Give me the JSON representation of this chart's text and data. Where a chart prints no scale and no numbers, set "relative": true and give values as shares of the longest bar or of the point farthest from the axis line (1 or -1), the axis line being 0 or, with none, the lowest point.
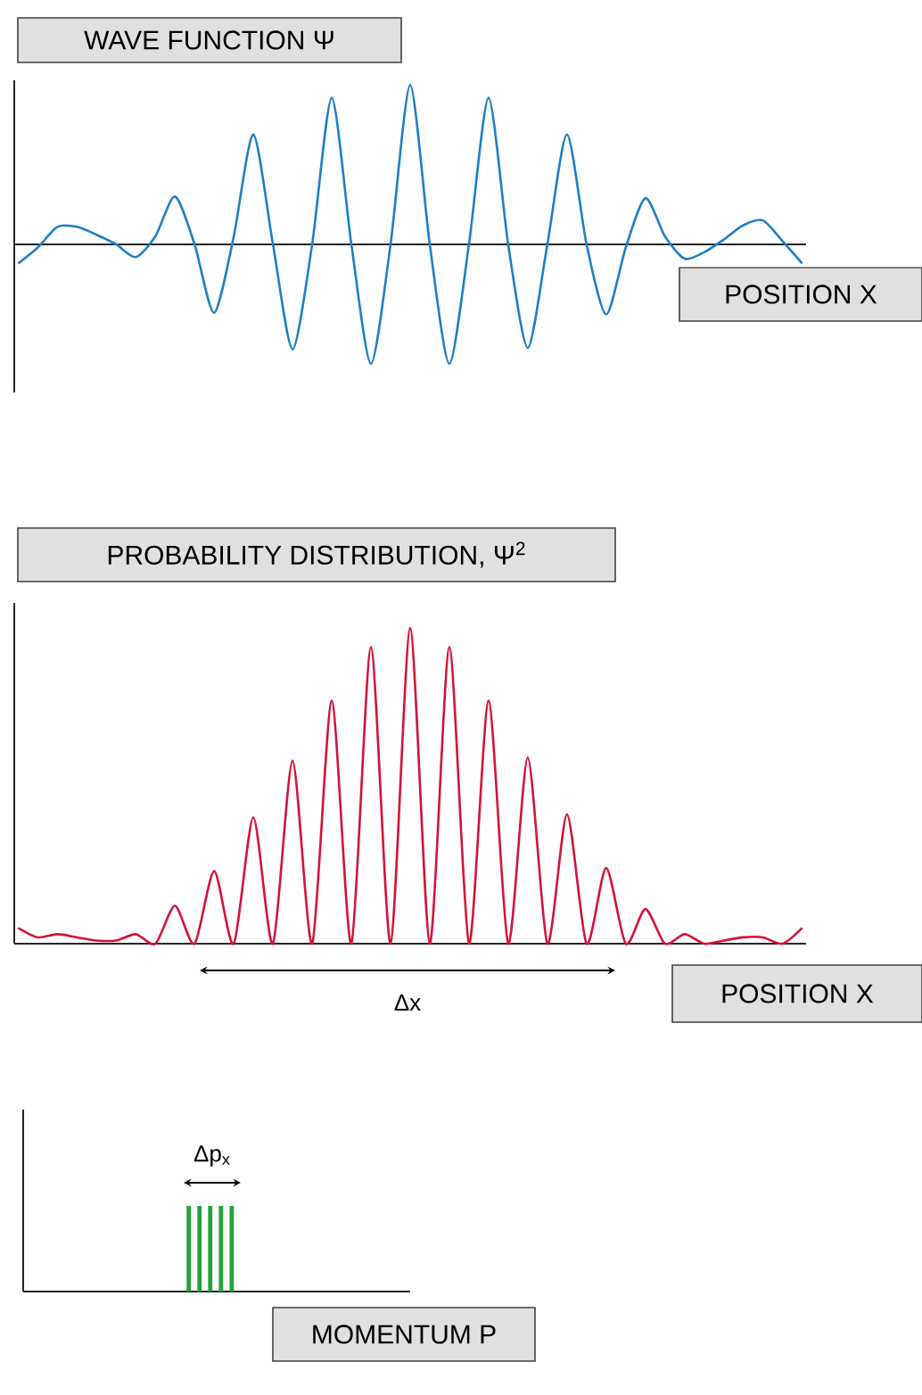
{
  "chart_data": [
    {
      "type": "line",
      "title": "WAVE FUNCTION Ψ",
      "xlabel": "POSITION X",
      "relative": true,
      "categories": [
        null,
        null,
        null,
        null,
        null,
        null,
        null,
        null,
        null,
        null,
        null,
        null,
        null,
        null,
        null,
        null,
        null,
        null,
        null,
        null,
        null,
        null,
        null,
        null,
        null,
        null,
        null,
        null,
        null,
        null,
        null,
        null,
        null,
        null,
        null,
        null,
        null,
        null,
        null,
        null,
        null
      ],
      "series": [
        {
          "color": "#1f7fc4",
          "values": [
            -0.12,
            -0.02,
            0.11,
            0.11,
            0.06,
            0.0,
            -0.08,
            0.05,
            0.3,
            0.0,
            -0.43,
            0.05,
            0.69,
            0.0,
            -0.66,
            0.0,
            0.92,
            0.0,
            -0.75,
            0.0,
            1.0,
            0.0,
            -0.75,
            0.0,
            0.92,
            0.0,
            -0.65,
            0.0,
            0.69,
            0.0,
            -0.44,
            -0.02,
            0.29,
            0.05,
            -0.09,
            -0.05,
            0.03,
            0.12,
            0.15,
            0.02,
            -0.12
          ]
        }
      ]
    },
    {
      "type": "line",
      "title": "PROBABILITY DISTRIBUTION, Ψ$^{2}$",
      "xlabel": "POSITION X",
      "relative": true,
      "annotations": [
        "Δx"
      ],
      "categories": [
        null,
        null,
        null,
        null,
        null,
        null,
        null,
        null,
        null,
        null,
        null,
        null,
        null,
        null,
        null,
        null,
        null,
        null,
        null,
        null,
        null,
        null,
        null,
        null,
        null,
        null,
        null,
        null,
        null,
        null,
        null,
        null,
        null,
        null,
        null,
        null,
        null,
        null,
        null,
        null,
        null
      ],
      "series": [
        {
          "color": "#d4113a",
          "values": [
            0.05,
            0.02,
            0.03,
            0.02,
            0.01,
            0.01,
            0.03,
            0.0,
            0.12,
            0.0,
            0.23,
            0.0,
            0.4,
            0.0,
            0.58,
            0.0,
            0.77,
            0.0,
            0.94,
            0.0,
            1.0,
            0.0,
            0.94,
            0.0,
            0.77,
            0.0,
            0.59,
            0.0,
            0.41,
            0.0,
            0.24,
            0.0,
            0.11,
            0.0,
            0.03,
            0.0,
            0.01,
            0.02,
            0.02,
            0.0,
            0.05
          ]
        }
      ]
    },
    {
      "type": "bar",
      "xlabel": "MOMENTUM P",
      "relative": true,
      "annotations": [
        "Δp$_{x}$"
      ],
      "categories": [
        null,
        null,
        null,
        null,
        null
      ],
      "series": [
        {
          "color": "#22a33a",
          "values": [
            1,
            1,
            1,
            1,
            1
          ]
        }
      ]
    }
  ]
}
